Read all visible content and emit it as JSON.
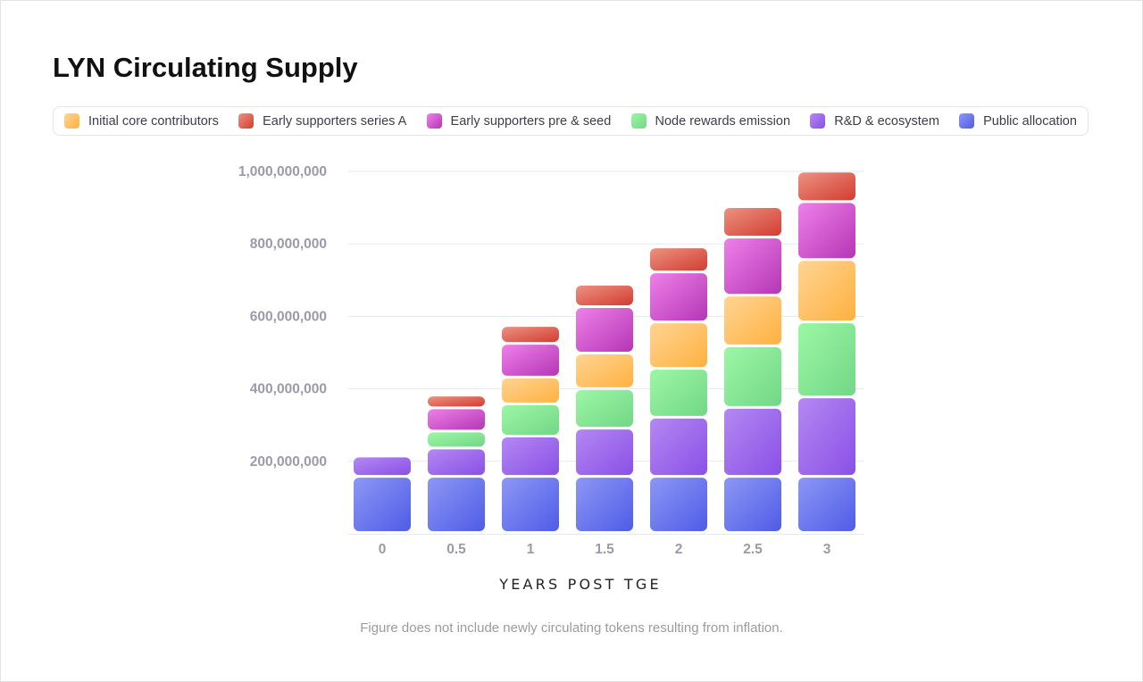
{
  "chart_data": {
    "type": "bar",
    "stacked": true,
    "title": "LYN Circulating Supply",
    "xlabel": "YEARS POST TGE",
    "ylabel": "",
    "ylim": [
      0,
      1000000000
    ],
    "yticks": [
      "200,000,000",
      "400,000,000",
      "600,000,000",
      "800,000,000",
      "1,000,000,000"
    ],
    "ytick_values": [
      200000000,
      400000000,
      600000000,
      800000000,
      1000000000
    ],
    "grid": true,
    "legend_position": "top",
    "categories": [
      "0",
      "0.5",
      "1",
      "1.5",
      "2",
      "2.5",
      "3"
    ],
    "series": [
      {
        "name": "Public allocation",
        "color": "#5f6cec",
        "grad": [
          "#8d97f6",
          "#4f5ce6"
        ],
        "values": [
          155000000,
          155000000,
          155000000,
          155000000,
          155000000,
          155000000,
          155000000
        ]
      },
      {
        "name": "R&D & ecosystem",
        "color": "#9a62ec",
        "grad": [
          "#b488f3",
          "#8a50e6"
        ],
        "values": [
          56000000,
          78000000,
          111000000,
          133000000,
          163000000,
          190000000,
          219000000
        ]
      },
      {
        "name": "Node rewards emission",
        "color": "#86e89a",
        "grad": [
          "#9cf7a4",
          "#72d787"
        ],
        "values": [
          0,
          47000000,
          89000000,
          109000000,
          135000000,
          170000000,
          207000000
        ]
      },
      {
        "name": "Initial core contributors",
        "color": "#ffbf5e",
        "grad": [
          "#ffd494",
          "#ffb13f"
        ],
        "values": [
          0,
          0,
          74000000,
          98000000,
          128000000,
          140000000,
          172000000
        ]
      },
      {
        "name": "Early supporters pre & seed",
        "color": "#d554d2",
        "grad": [
          "#ee80e8",
          "#b536b6"
        ],
        "values": [
          0,
          64000000,
          93000000,
          128000000,
          138000000,
          160000000,
          160000000
        ]
      },
      {
        "name": "Early supporters series A",
        "color": "#e06555",
        "grad": [
          "#ec9282",
          "#d23d30"
        ],
        "values": [
          0,
          35000000,
          49000000,
          62000000,
          69000000,
          84000000,
          84000000
        ]
      }
    ],
    "legend_order": [
      3,
      5,
      4,
      2,
      1,
      0
    ],
    "footnote": "Figure does not include newly circulating tokens resulting from inflation."
  }
}
